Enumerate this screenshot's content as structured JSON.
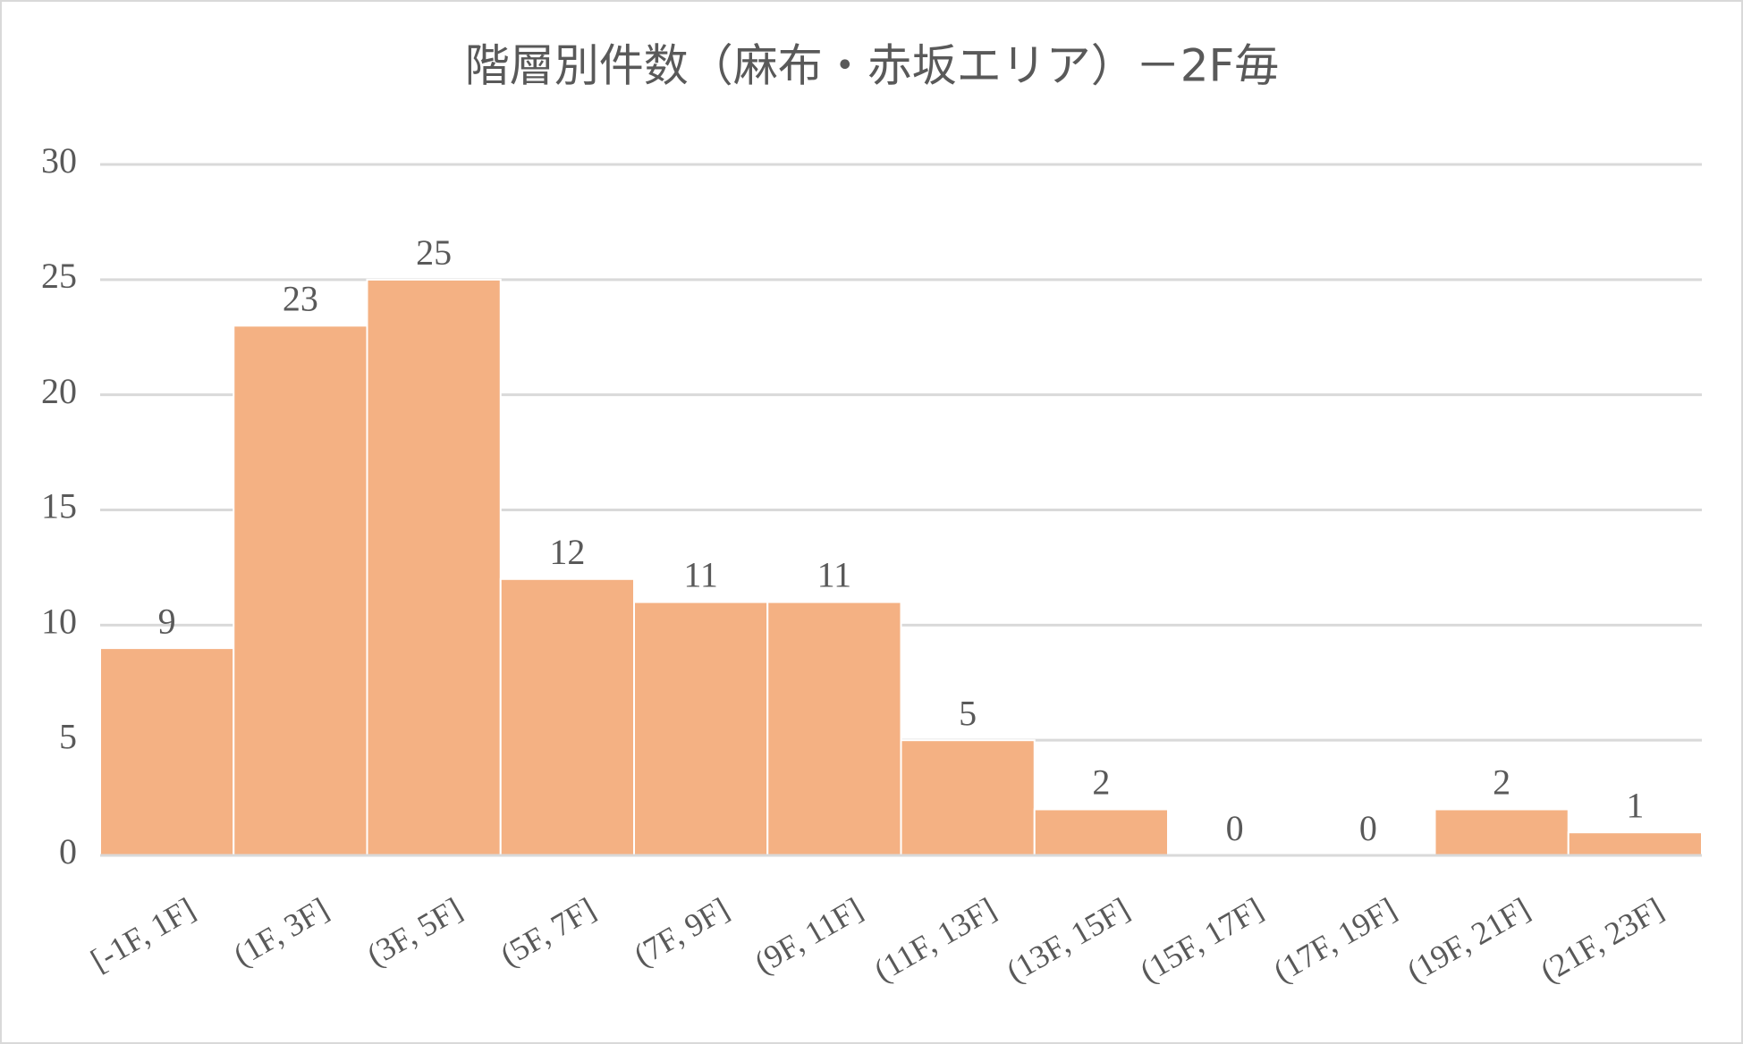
{
  "chart_data": {
    "type": "bar",
    "title": "階層別件数（麻布・赤坂エリア）－2F毎",
    "categories": [
      "[-1F, 1F]",
      "(1F, 3F]",
      "(3F, 5F]",
      "(5F, 7F]",
      "(7F, 9F]",
      "(9F, 11F]",
      "(11F, 13F]",
      "(13F, 15F]",
      "(15F, 17F]",
      "(17F, 19F]",
      "(19F, 21F]",
      "(21F, 23F]"
    ],
    "values": [
      9,
      23,
      25,
      12,
      11,
      11,
      5,
      2,
      0,
      0,
      2,
      1
    ],
    "color": "#f4b183",
    "ylim": [
      0,
      30
    ],
    "yticks": [
      0,
      5,
      10,
      15,
      20,
      25,
      30
    ],
    "grid": true
  }
}
